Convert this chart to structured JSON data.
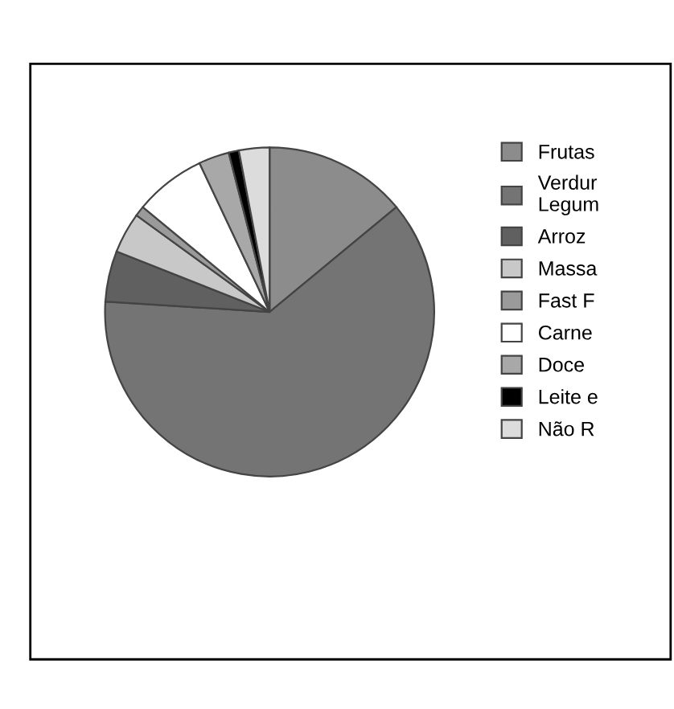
{
  "chart_data": {
    "type": "pie",
    "categories": [
      "Frutas",
      "Verdur\nLegum",
      "Arroz",
      "Massa",
      "Fast F",
      "Carne",
      "Doce",
      "Leite e",
      "Não R"
    ],
    "values": [
      14,
      62,
      5,
      4,
      1,
      7,
      3,
      1,
      3
    ],
    "colors": [
      "#8c8c8c",
      "#747474",
      "#606060",
      "#c8c8c8",
      "#9a9a9a",
      "#ffffff",
      "#a8a8a8",
      "#000000",
      "#dcdcdc"
    ],
    "legend": "right"
  }
}
